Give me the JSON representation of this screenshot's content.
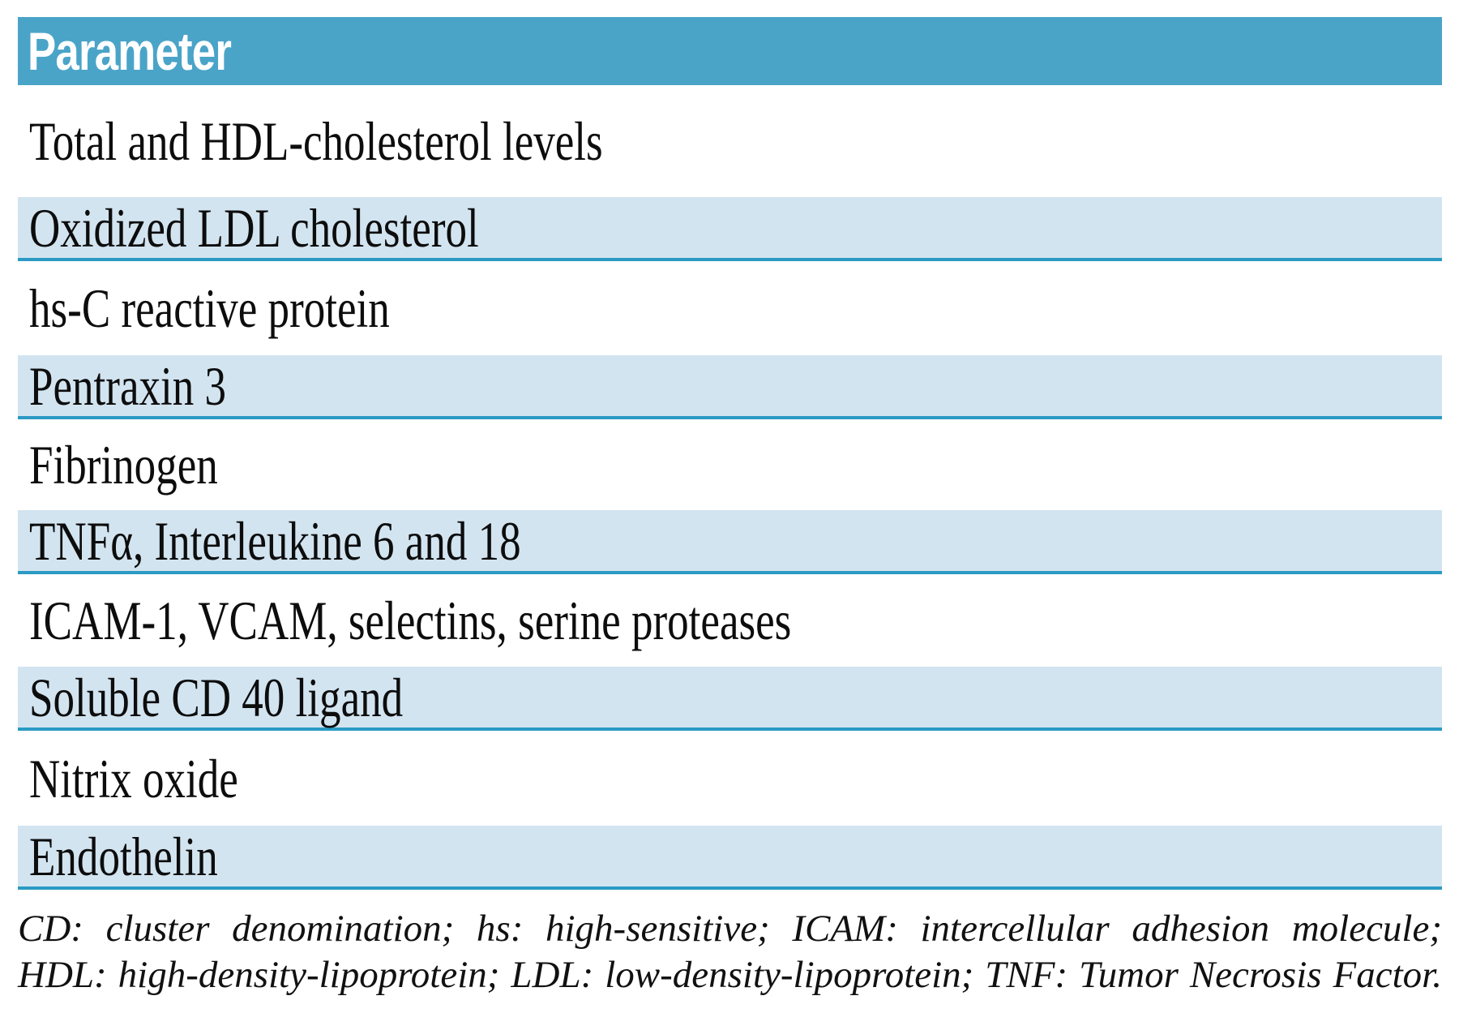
{
  "table": {
    "header": "Parameter",
    "rows": [
      {
        "label": "Total and HDL-cholesterol levels",
        "shaded": false
      },
      {
        "label": "Oxidized LDL cholesterol",
        "shaded": true
      },
      {
        "label": "hs-C reactive protein",
        "shaded": false
      },
      {
        "label": "Pentraxin 3",
        "shaded": true
      },
      {
        "label": "Fibrinogen",
        "shaded": false
      },
      {
        "label": "TNFα, Interleukine 6 and 18",
        "shaded": true
      },
      {
        "label": "ICAM-1, VCAM, selectins, serine proteases",
        "shaded": false
      },
      {
        "label": "Soluble CD 40 ligand",
        "shaded": true
      },
      {
        "label": "Nitrix oxide",
        "shaded": false
      },
      {
        "label": "Endothelin",
        "shaded": true
      }
    ],
    "footnote_line1": "CD: cluster denomination; hs: high-sensitive; ICAM: intercellular adhesion molecule;",
    "footnote_line2": "HDL: high-density-lipoprotein; LDL: low-density-lipoprotein; TNF: Tumor Necrosis Factor."
  },
  "colors": {
    "header_bg": "#4aa4c8",
    "header_text": "#ffffff",
    "row_shaded_bg": "#d2e4f0",
    "row_separator": "#2b9ac4",
    "body_text": "#0d0d0d"
  }
}
